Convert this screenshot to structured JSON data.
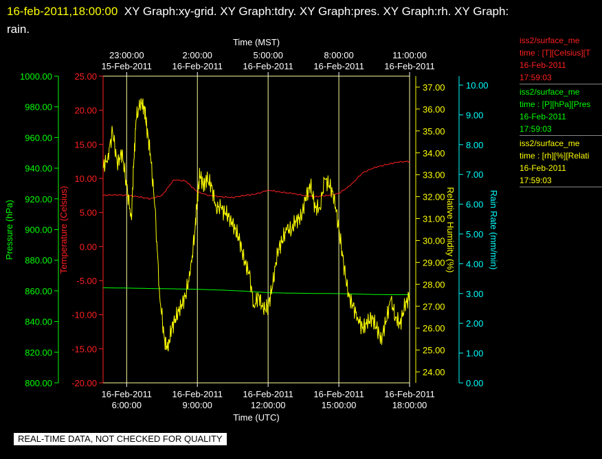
{
  "header": {
    "timestamp": "16-feb-2011,18:00:00",
    "graph_list": "XY Graph:xy-grid.  XY Graph:tdry.  XY Graph:pres.  XY Graph:rh.  XY Graph:",
    "graph_list_cont": "rain."
  },
  "footer": {
    "quality_notice": "REAL-TIME DATA, NOT CHECKED FOR QUALITY"
  },
  "legend": [
    {
      "line1": "iss2/surface_me",
      "line2": "time : [T][Celsius][T",
      "line3": "16-Feb-2011",
      "line4": "17:59:03",
      "color": "#ff2020"
    },
    {
      "line1": "iss2/surface_me",
      "line2": "time : [P][hPa][Pres",
      "line3": "16-Feb-2011",
      "line4": "17:59:03",
      "color": "#00ff00"
    },
    {
      "line1": "iss2/surface_me",
      "line2": "time : [rh][%][Relati",
      "line3": "16-Feb-2011",
      "line4": "17:59:03",
      "color": "#ffff00"
    }
  ],
  "colors": {
    "temperature": "#ff2020",
    "pressure": "#00ff00",
    "humidity": "#ffff00",
    "rain": "#00ffff",
    "grid": "#ffffa0"
  },
  "chart_data": {
    "type": "line",
    "x_start": "16-Feb-2011 05:00:00 UTC",
    "x_range_hours": [
      0,
      13
    ],
    "xlabel_bottom": "Time (UTC)",
    "xlabel_top": "Time (MST)",
    "bottom_ticks": [
      {
        "date": "16-Feb-2011",
        "time": "6:00:00",
        "h": 1
      },
      {
        "date": "16-Feb-2011",
        "time": "9:00:00",
        "h": 4
      },
      {
        "date": "16-Feb-2011",
        "time": "12:00:00",
        "h": 7
      },
      {
        "date": "16-Feb-2011",
        "time": "15:00:00",
        "h": 10
      },
      {
        "date": "16-Feb-2011",
        "time": "18:00:00",
        "h": 13
      }
    ],
    "top_ticks": [
      {
        "time": "23:00:00",
        "date": "15-Feb-2011",
        "h": 1
      },
      {
        "time": "2:00:00",
        "date": "16-Feb-2011",
        "h": 4
      },
      {
        "time": "5:00:00",
        "date": "16-Feb-2011",
        "h": 7
      },
      {
        "time": "8:00:00",
        "date": "16-Feb-2011",
        "h": 10
      },
      {
        "time": "11:00:00",
        "date": "16-Feb-2011",
        "h": 13
      }
    ],
    "axes": {
      "pressure": {
        "label": "Pressure (hPa)",
        "range": [
          800,
          1000
        ],
        "ticks": [
          "800.00",
          "820.00",
          "840.00",
          "860.00",
          "880.00",
          "900.00",
          "920.00",
          "940.00",
          "960.00",
          "980.00",
          "1000.00"
        ]
      },
      "temperature": {
        "label": "Temperature (Celsius)",
        "range": [
          -20,
          25
        ],
        "ticks": [
          "-20.00",
          "-15.00",
          "-10.00",
          "-5.00",
          "0.00",
          "5.00",
          "10.00",
          "15.00",
          "20.00",
          "25.00"
        ]
      },
      "humidity": {
        "label": "Relative Humidity (%)",
        "range": [
          23.5,
          37.5
        ],
        "ticks": [
          "24.00",
          "25.00",
          "26.00",
          "27.00",
          "28.00",
          "29.00",
          "30.00",
          "31.00",
          "32.00",
          "33.00",
          "34.00",
          "35.00",
          "36.00",
          "37.00"
        ]
      },
      "rain": {
        "label": "Rain Rate (mm/min)",
        "range": [
          0,
          10.3
        ],
        "ticks": [
          "0.00",
          "1.00",
          "2.00",
          "3.00",
          "4.00",
          "5.00",
          "6.00",
          "7.00",
          "8.00",
          "9.00",
          "10.00"
        ]
      }
    },
    "series": [
      {
        "name": "iss2/surface_me time : [T][Celsius][T",
        "axis": "temperature",
        "x": [
          0,
          0.5,
          1,
          1.5,
          2,
          2.5,
          3,
          3.5,
          4,
          4.5,
          5,
          5.5,
          6,
          6.5,
          7,
          7.5,
          8,
          8.5,
          9,
          9.5,
          10,
          10.5,
          11,
          11.5,
          12,
          12.5,
          13
        ],
        "y": [
          7.5,
          7.6,
          7.5,
          7.3,
          7.0,
          7.5,
          9.8,
          9.6,
          8.0,
          7.5,
          7.3,
          7.2,
          7.5,
          7.7,
          8.3,
          8.0,
          7.8,
          7.5,
          7.3,
          7.5,
          7.8,
          9.0,
          10.8,
          11.6,
          12.0,
          12.4,
          12.5
        ]
      },
      {
        "name": "iss2/surface_me time : [P][hPa][Pres",
        "axis": "pressure",
        "x": [
          0,
          1,
          2,
          3,
          4,
          5,
          6,
          7,
          8,
          9,
          10,
          11,
          12,
          13
        ],
        "y": [
          862,
          861.8,
          861.5,
          861.3,
          861,
          860.5,
          859.8,
          858.8,
          858.5,
          858.3,
          858.2,
          857.8,
          857.5,
          857.5
        ]
      },
      {
        "name": "iss2/surface_me time : [rh][%][Relati",
        "axis": "humidity",
        "x": [
          0,
          0.2,
          0.4,
          0.6,
          0.8,
          1.0,
          1.2,
          1.3,
          1.4,
          1.6,
          1.75,
          1.85,
          2.0,
          2.2,
          2.4,
          2.6,
          2.75,
          2.9,
          3.1,
          3.3,
          3.5,
          3.7,
          3.9,
          4.0,
          4.1,
          4.25,
          4.4,
          4.6,
          4.8,
          5.0,
          5.2,
          5.4,
          5.6,
          5.8,
          6.0,
          6.2,
          6.4,
          6.6,
          6.8,
          7.0,
          7.2,
          7.4,
          7.6,
          7.8,
          8.0,
          8.2,
          8.4,
          8.6,
          8.8,
          9.0,
          9.2,
          9.4,
          9.6,
          9.8,
          10.0,
          10.2,
          10.4,
          10.6,
          10.8,
          11.0,
          11.2,
          11.4,
          11.6,
          11.8,
          12.0,
          12.2,
          12.4,
          12.6,
          12.8,
          13.0
        ],
        "y": [
          33.3,
          33.8,
          35.0,
          33.5,
          34.0,
          32.5,
          31.0,
          33.5,
          35.5,
          36.4,
          36.0,
          35.2,
          34.0,
          31.5,
          27.5,
          25.5,
          25.0,
          26.0,
          26.5,
          27.0,
          27.5,
          28.5,
          30.5,
          32.0,
          33.0,
          32.5,
          32.8,
          32.5,
          31.5,
          31.5,
          31.2,
          31.0,
          30.5,
          30.0,
          29.0,
          28.5,
          27.0,
          27.5,
          26.8,
          27.0,
          28.0,
          29.5,
          30.0,
          30.5,
          30.5,
          31.0,
          31.0,
          32.0,
          32.5,
          31.5,
          31.5,
          32.8,
          32.5,
          32.0,
          30.5,
          29.0,
          27.5,
          27.0,
          26.5,
          26.0,
          26.2,
          26.5,
          26.0,
          25.5,
          26.3,
          27.3,
          26.5,
          26.2,
          27.0,
          27.5
        ]
      }
    ]
  }
}
